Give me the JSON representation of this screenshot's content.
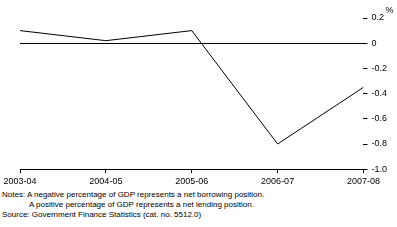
{
  "chart_data": {
    "type": "line",
    "categories": [
      "2003-04",
      "2004-05",
      "2005-06",
      "2006-07",
      "2007-08"
    ],
    "values": [
      0.1,
      0.02,
      0.1,
      -0.8,
      -0.35
    ],
    "color": "#000000",
    "y_label": "%",
    "ylim": [
      -1.0,
      0.2
    ],
    "yticks": [
      {
        "value": -1.0,
        "label": "-1.0"
      },
      -0.8,
      -0.6,
      -0.4,
      -0.2,
      0,
      0.2
    ],
    "grid": false,
    "notes": [
      "Notes: A negative percentage of GDP represents a net borrowing position.",
      "A positive percentage of GDP represents a net lending position."
    ],
    "source": "Source: Government Finance Statistics (cat. no. 5512.0)"
  }
}
